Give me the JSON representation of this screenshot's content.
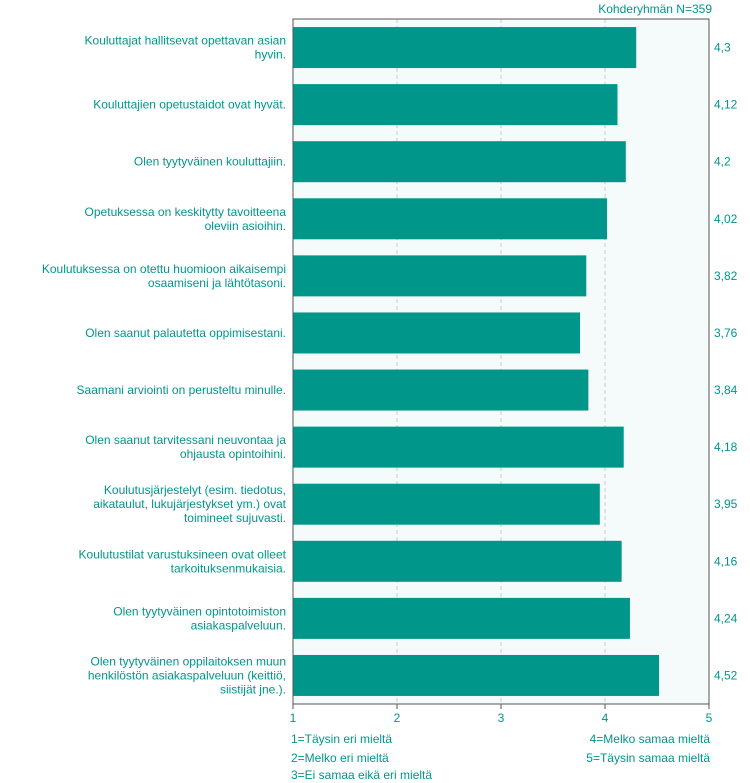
{
  "target_note": "Kohderyhmän N=359",
  "colors": {
    "bar": "#00968a",
    "text": "#00968a",
    "plot_bg": "#f4fbfa",
    "grid": "#c9c9c9",
    "frame": "#555555"
  },
  "legend": {
    "left": [
      "1=Täysin eri mieltä",
      "2=Melko eri mieltä",
      "3=Ei samaa eikä eri mieltä"
    ],
    "right": [
      "4=Melko samaa mieltä",
      "5=Täysin samaa mieltä"
    ]
  },
  "chart_data": {
    "type": "bar",
    "orientation": "horizontal",
    "xlim": [
      1,
      5
    ],
    "xticks": [
      "1",
      "2",
      "3",
      "4",
      "5"
    ],
    "grid": true,
    "categories": [
      [
        "Kouluttajat hallitsevat opettavan asian",
        "hyvin."
      ],
      [
        "Kouluttajien opetustaidot ovat hyvät."
      ],
      [
        "Olen tyytyväinen kouluttajiin."
      ],
      [
        "Opetuksessa on keskitytty tavoitteena",
        "oleviin asioihin."
      ],
      [
        "Koulutuksessa on otettu huomioon aikaisempi",
        "osaamiseni ja lähtötasoni."
      ],
      [
        "Olen saanut palautetta oppimisestani."
      ],
      [
        "Saamani arviointi on perusteltu minulle."
      ],
      [
        "Olen saanut tarvitessani neuvontaa ja",
        "ohjausta opintoihini."
      ],
      [
        "Koulutusjärjestelyt (esim. tiedotus,",
        "aikataulut, lukujärjestykset ym.) ovat",
        "toimineet sujuvasti."
      ],
      [
        "Koulutustilat varustuksineen ovat olleet",
        "tarkoituksenmukaisia."
      ],
      [
        "Olen tyytyväinen opintotoimiston",
        "asiakaspalveluun."
      ],
      [
        "Olen tyytyväinen oppilaitoksen muun",
        "henkilöstön asiakaspalveluun (keittiö,",
        "siistijät jne.)."
      ]
    ],
    "values": [
      4.3,
      4.12,
      4.2,
      4.02,
      3.82,
      3.76,
      3.84,
      4.18,
      3.95,
      4.16,
      4.24,
      4.52
    ],
    "value_labels": [
      "4,3",
      "4,12",
      "4,2",
      "4,02",
      "3,82",
      "3,76",
      "3,84",
      "4,18",
      "3,95",
      "4,16",
      "4,24",
      "4,52"
    ]
  }
}
